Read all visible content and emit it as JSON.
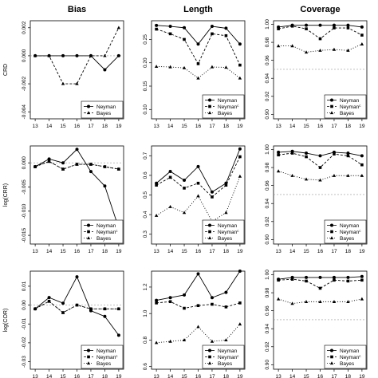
{
  "column_titles": [
    "Bias",
    "Length",
    "Coverage"
  ],
  "row_labels": [
    "CRD",
    "log(CRR)",
    "log(COR)"
  ],
  "chart_data": [
    {
      "type": "line",
      "panel": "CRD-Bias",
      "x": [
        13,
        14,
        15,
        16,
        17,
        18,
        19
      ],
      "ylim": [
        -0.0045,
        0.0025
      ],
      "yticks": [
        -0.004,
        -0.002,
        0,
        0.002
      ],
      "ytick_labels": [
        "-0.004",
        "-0.002",
        "0.000",
        "0.002"
      ],
      "reference": 0,
      "series": [
        {
          "name": "Neyman",
          "style": "solid",
          "marker": "circle",
          "values": [
            0,
            0,
            0,
            0,
            0,
            -0.001,
            0
          ]
        },
        {
          "name": "Bayes",
          "style": "dashed",
          "marker": "triangle",
          "values": [
            0,
            0,
            -0.002,
            -0.002,
            0,
            0,
            0.002
          ]
        }
      ],
      "legend": [
        "Neyman",
        "Bayes"
      ]
    },
    {
      "type": "line",
      "panel": "CRD-Length",
      "x": [
        13,
        14,
        15,
        16,
        17,
        18,
        19
      ],
      "ylim": [
        0.08,
        0.29
      ],
      "yticks": [
        0.1,
        0.15,
        0.2,
        0.25
      ],
      "ytick_labels": [
        "0.10",
        "0.15",
        "0.20",
        "0.25"
      ],
      "series": [
        {
          "name": "Neyman",
          "style": "solid",
          "marker": "circle",
          "values": [
            0.28,
            0.278,
            0.275,
            0.24,
            0.278,
            0.274,
            0.24
          ]
        },
        {
          "name": "Neyman^c",
          "style": "dashed",
          "marker": "square",
          "values": [
            0.272,
            0.262,
            0.25,
            0.198,
            0.262,
            0.258,
            0.195
          ]
        },
        {
          "name": "Bayes",
          "style": "dotted",
          "marker": "triangle",
          "values": [
            0.192,
            0.191,
            0.189,
            0.167,
            0.191,
            0.19,
            0.167
          ]
        }
      ],
      "legend": [
        "Neyman",
        "Neyman^c",
        "Bayes"
      ]
    },
    {
      "type": "line",
      "panel": "CRD-Coverage",
      "x": [
        13,
        14,
        15,
        16,
        17,
        18,
        19
      ],
      "ylim": [
        0.895,
        1.004
      ],
      "yticks": [
        0.9,
        0.92,
        0.94,
        0.96,
        0.98,
        1.0
      ],
      "ytick_labels": [
        "0.90",
        "0.92",
        "0.94",
        "0.96",
        "0.98",
        "1.00"
      ],
      "reference": 0.95,
      "series": [
        {
          "name": "Neyman",
          "style": "solid",
          "marker": "circle",
          "values": [
            0.997,
            0.999,
            0.999,
            0.999,
            0.999,
            0.999,
            0.997
          ]
        },
        {
          "name": "Neyman^c",
          "style": "dashed",
          "marker": "square",
          "values": [
            0.995,
            0.998,
            0.995,
            0.984,
            0.996,
            0.996,
            0.988
          ]
        },
        {
          "name": "Bayes",
          "style": "dotted",
          "marker": "triangle",
          "values": [
            0.976,
            0.976,
            0.969,
            0.971,
            0.972,
            0.971,
            0.978
          ]
        }
      ],
      "legend": [
        "Neyman",
        "Neyman^c",
        "Bayes"
      ]
    },
    {
      "type": "line",
      "panel": "logCRR-Bias",
      "x": [
        13,
        14,
        15,
        16,
        17,
        18,
        19
      ],
      "ylim": [
        -0.0168,
        0.0035
      ],
      "yticks": [
        -0.015,
        -0.01,
        -0.005,
        0
      ],
      "ytick_labels": [
        "-0.015",
        "-0.010",
        "-0.005",
        "0.000"
      ],
      "reference": 0,
      "series": [
        {
          "name": "Neyman",
          "style": "solid",
          "marker": "circle",
          "values": [
            -0.0008,
            0.0008,
            0.0,
            0.0028,
            -0.0018,
            -0.0048,
            -0.0135
          ]
        },
        {
          "name": "Neyman^c",
          "style": "dashed",
          "marker": "square",
          "values": [
            -0.0008,
            0.0003,
            -0.0013,
            -0.0003,
            -0.0003,
            -0.0008,
            -0.0013
          ]
        },
        {
          "name": "Bayes",
          "style": "dotted",
          "marker": "triangle",
          "values": [
            -0.0008,
            0.0003,
            -0.0013,
            -0.0003,
            -0.0003,
            -0.0008,
            -0.0013
          ]
        }
      ],
      "legend": [
        "Neyman",
        "Neyman^c",
        "Bayes"
      ]
    },
    {
      "type": "line",
      "panel": "logCRR-Length",
      "x": [
        13,
        14,
        15,
        16,
        17,
        18,
        19
      ],
      "ylim": [
        0.25,
        0.75
      ],
      "yticks": [
        0.3,
        0.4,
        0.5,
        0.6,
        0.7
      ],
      "ytick_labels": [
        "0.3",
        "0.4",
        "0.5",
        "0.6",
        "0.7"
      ],
      "series": [
        {
          "name": "Neyman",
          "style": "solid",
          "marker": "circle",
          "values": [
            0.56,
            0.62,
            0.575,
            0.645,
            0.515,
            0.56,
            0.735
          ]
        },
        {
          "name": "Neyman^c",
          "style": "dashed",
          "marker": "square",
          "values": [
            0.55,
            0.59,
            0.535,
            0.56,
            0.49,
            0.55,
            0.695
          ]
        },
        {
          "name": "Bayes",
          "style": "dotted",
          "marker": "triangle",
          "values": [
            0.395,
            0.44,
            0.41,
            0.495,
            0.365,
            0.41,
            0.595
          ]
        }
      ],
      "legend": [
        "Neyman",
        "Neyman^c",
        "Bayes"
      ]
    },
    {
      "type": "line",
      "panel": "logCRR-Coverage",
      "x": [
        13,
        14,
        15,
        16,
        17,
        18,
        19
      ],
      "ylim": [
        0.895,
        1.004
      ],
      "yticks": [
        0.9,
        0.92,
        0.94,
        0.96,
        0.98,
        1.0
      ],
      "ytick_labels": [
        "0.90",
        "0.92",
        "0.94",
        "0.96",
        "0.98",
        "1.00"
      ],
      "reference": 0.95,
      "series": [
        {
          "name": "Neyman",
          "style": "solid",
          "marker": "circle",
          "values": [
            0.997,
            0.998,
            0.996,
            0.993,
            0.997,
            0.996,
            0.993
          ]
        },
        {
          "name": "Neyman^c",
          "style": "dashed",
          "marker": "square",
          "values": [
            0.994,
            0.996,
            0.992,
            0.98,
            0.995,
            0.993,
            0.983
          ]
        },
        {
          "name": "Bayes",
          "style": "dotted",
          "marker": "triangle",
          "values": [
            0.976,
            0.971,
            0.967,
            0.966,
            0.971,
            0.971,
            0.971
          ]
        }
      ],
      "legend": [
        "Neyman",
        "Neyman^c",
        "Bayes"
      ]
    },
    {
      "type": "line",
      "panel": "logCOR-Bias",
      "x": [
        13,
        14,
        15,
        16,
        17,
        18,
        19
      ],
      "ylim": [
        -0.034,
        0.018
      ],
      "yticks": [
        -0.03,
        -0.02,
        -0.01,
        0,
        0.01
      ],
      "ytick_labels": [
        "-0.03",
        "-0.02",
        "-0.01",
        "0.00",
        "0.01"
      ],
      "reference": 0,
      "series": [
        {
          "name": "Neyman",
          "style": "solid",
          "marker": "circle",
          "values": [
            -0.002,
            0.004,
            0.001,
            0.015,
            -0.003,
            -0.006,
            -0.016
          ]
        },
        {
          "name": "Neyman^c",
          "style": "dashed",
          "marker": "square",
          "values": [
            -0.002,
            0.002,
            -0.004,
            0.0,
            -0.002,
            -0.002,
            -0.002
          ]
        },
        {
          "name": "Bayes",
          "style": "dotted",
          "marker": "triangle",
          "values": [
            -0.002,
            0.002,
            -0.004,
            0.0,
            -0.002,
            -0.002,
            -0.002
          ]
        }
      ],
      "legend": [
        "Neyman",
        "Neyman^c",
        "Bayes"
      ]
    },
    {
      "type": "line",
      "panel": "logCOR-Length",
      "x": [
        13,
        14,
        15,
        16,
        17,
        18,
        19
      ],
      "ylim": [
        0.58,
        1.32
      ],
      "yticks": [
        0.6,
        0.8,
        1.0,
        1.2
      ],
      "ytick_labels": [
        "0.6",
        "0.8",
        "1.0",
        "1.2"
      ],
      "series": [
        {
          "name": "Neyman",
          "style": "solid",
          "marker": "circle",
          "values": [
            1.1,
            1.12,
            1.14,
            1.3,
            1.12,
            1.16,
            1.32
          ]
        },
        {
          "name": "Neyman^c",
          "style": "dashed",
          "marker": "square",
          "values": [
            1.08,
            1.09,
            1.04,
            1.06,
            1.07,
            1.05,
            1.08
          ]
        },
        {
          "name": "Bayes",
          "style": "dotted",
          "marker": "triangle",
          "values": [
            0.78,
            0.79,
            0.8,
            0.9,
            0.79,
            0.8,
            0.92
          ]
        }
      ],
      "legend": [
        "Neyman",
        "Neyman^c",
        "Bayes"
      ]
    },
    {
      "type": "line",
      "panel": "logCOR-Coverage",
      "x": [
        13,
        14,
        15,
        16,
        17,
        18,
        19
      ],
      "ylim": [
        0.895,
        1.004
      ],
      "yticks": [
        0.9,
        0.92,
        0.94,
        0.96,
        0.98,
        1.0
      ],
      "ytick_labels": [
        "0.90",
        "0.92",
        "0.94",
        "0.96",
        "0.98",
        "1.00"
      ],
      "reference": 0.95,
      "series": [
        {
          "name": "Neyman",
          "style": "solid",
          "marker": "circle",
          "values": [
            0.995,
            0.997,
            0.997,
            0.997,
            0.997,
            0.997,
            0.998
          ]
        },
        {
          "name": "Neyman^c",
          "style": "dashed",
          "marker": "square",
          "values": [
            0.994,
            0.995,
            0.993,
            0.985,
            0.994,
            0.993,
            0.994
          ]
        },
        {
          "name": "Bayes",
          "style": "dotted",
          "marker": "triangle",
          "values": [
            0.973,
            0.968,
            0.97,
            0.97,
            0.97,
            0.97,
            0.973
          ]
        }
      ],
      "legend": [
        "Neyman",
        "Neyman^c",
        "Bayes"
      ]
    }
  ]
}
